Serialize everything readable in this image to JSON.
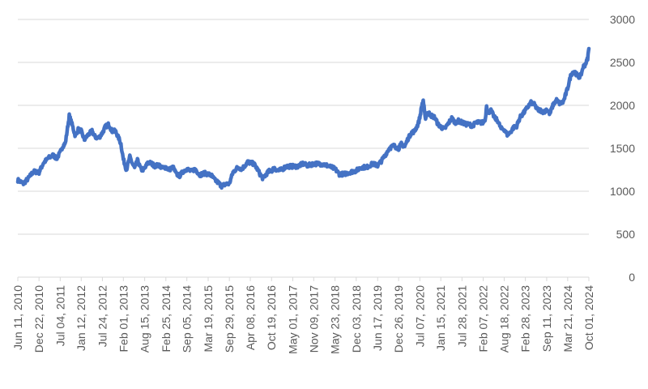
{
  "chart_data": {
    "type": "line",
    "title": "",
    "xlabel": "",
    "ylabel": "",
    "y_axis_side": "right",
    "ylim": [
      0,
      3000
    ],
    "yticks": [
      0,
      500,
      1000,
      1500,
      2000,
      2500,
      3000
    ],
    "grid": "horizontal",
    "legend": "none",
    "line_color": "#4472C4",
    "gridline_color": "#D9D9D9",
    "xticks": [
      "Jun 11, 2010",
      "Dec 22, 2010",
      "Jul 04, 2011",
      "Jan 12, 2012",
      "Jul 24, 2012",
      "Feb 01, 2013",
      "Aug 15, 2013",
      "Feb 25, 2014",
      "Sep 05, 2014",
      "Mar 19, 2015",
      "Sep 29, 2015",
      "Apr 08, 2016",
      "Oct 19, 2016",
      "May 01, 2017",
      "Nov 09, 2017",
      "May 23, 2018",
      "Dec 03, 2018",
      "Jun 17, 2019",
      "Dec 26, 2019",
      "Jul 07, 2020",
      "Jan 15, 2021",
      "Jul 28, 2021",
      "Feb 07, 2022",
      "Aug 18, 2022",
      "Feb 28, 2023",
      "Sep 11, 2023",
      "Mar 21, 2024",
      "Oct 01, 2024"
    ],
    "x": [
      "2010-06-11",
      "2010-08-01",
      "2010-09-15",
      "2010-11-01",
      "2010-12-22",
      "2011-02-01",
      "2011-03-20",
      "2011-05-01",
      "2011-06-01",
      "2011-07-04",
      "2011-07-25",
      "2011-08-20",
      "2011-09-05",
      "2011-09-25",
      "2011-10-20",
      "2011-11-20",
      "2011-12-15",
      "2012-01-12",
      "2012-02-10",
      "2012-03-10",
      "2012-04-20",
      "2012-05-20",
      "2012-06-20",
      "2012-07-24",
      "2012-08-20",
      "2012-09-20",
      "2012-10-20",
      "2012-11-20",
      "2012-12-20",
      "2013-01-10",
      "2013-02-01",
      "2013-03-01",
      "2013-04-01",
      "2013-04-25",
      "2013-05-15",
      "2013-06-10",
      "2013-06-28",
      "2013-07-15",
      "2013-08-15",
      "2013-09-15",
      "2013-10-20",
      "2013-11-20",
      "2013-12-20",
      "2014-01-20",
      "2014-02-25",
      "2014-03-25",
      "2014-05-01",
      "2014-06-01",
      "2014-07-01",
      "2014-08-01",
      "2014-09-05",
      "2014-10-15",
      "2014-11-20",
      "2015-01-01",
      "2015-02-10",
      "2015-03-19",
      "2015-04-20",
      "2015-05-20",
      "2015-06-20",
      "2015-07-20",
      "2015-08-20",
      "2015-09-29",
      "2015-11-01",
      "2015-12-15",
      "2016-01-20",
      "2016-02-20",
      "2016-03-15",
      "2016-04-08",
      "2016-05-10",
      "2016-06-10",
      "2016-07-05",
      "2016-08-01",
      "2016-09-01",
      "2016-10-01",
      "2016-10-19",
      "2016-11-15",
      "2016-12-15",
      "2017-01-20",
      "2017-03-01",
      "2017-05-01",
      "2017-06-15",
      "2017-08-01",
      "2017-09-15",
      "2017-11-09",
      "2018-01-01",
      "2018-02-15",
      "2018-04-01",
      "2018-05-23",
      "2018-07-01",
      "2018-08-15",
      "2018-10-01",
      "2018-12-03",
      "2019-01-20",
      "2019-03-10",
      "2019-05-01",
      "2019-06-17",
      "2019-07-20",
      "2019-08-25",
      "2019-10-01",
      "2019-11-10",
      "2019-12-26",
      "2020-01-20",
      "2020-02-20",
      "2020-03-20",
      "2020-04-20",
      "2020-05-20",
      "2020-06-20",
      "2020-07-07",
      "2020-07-25",
      "2020-08-07",
      "2020-08-25",
      "2020-09-20",
      "2020-10-20",
      "2020-11-20",
      "2020-12-20",
      "2021-01-15",
      "2021-02-15",
      "2021-03-20",
      "2021-04-25",
      "2021-05-25",
      "2021-06-25",
      "2021-07-28",
      "2021-09-01",
      "2021-10-01",
      "2021-11-01",
      "2021-12-01",
      "2022-01-01",
      "2022-02-07",
      "2022-02-28",
      "2022-03-10",
      "2022-03-25",
      "2022-04-15",
      "2022-05-20",
      "2022-06-20",
      "2022-07-20",
      "2022-08-18",
      "2022-09-15",
      "2022-10-10",
      "2022-11-10",
      "2022-12-10",
      "2023-01-10",
      "2023-02-05",
      "2023-02-28",
      "2023-03-20",
      "2023-04-20",
      "2023-05-20",
      "2023-06-20",
      "2023-07-20",
      "2023-08-20",
      "2023-09-11",
      "2023-10-10",
      "2023-11-10",
      "2023-12-10",
      "2024-01-10",
      "2024-02-10",
      "2024-03-01",
      "2024-03-21",
      "2024-04-20",
      "2024-05-20",
      "2024-06-10",
      "2024-07-01",
      "2024-07-20",
      "2024-08-10",
      "2024-08-25",
      "2024-09-10",
      "2024-09-20",
      "2024-10-01"
    ],
    "values": [
      1130,
      1090,
      1150,
      1230,
      1220,
      1330,
      1390,
      1420,
      1380,
      1450,
      1520,
      1560,
      1700,
      1880,
      1780,
      1640,
      1720,
      1700,
      1600,
      1650,
      1700,
      1630,
      1620,
      1680,
      1750,
      1780,
      1700,
      1700,
      1620,
      1550,
      1370,
      1250,
      1400,
      1320,
      1270,
      1360,
      1300,
      1250,
      1260,
      1340,
      1320,
      1290,
      1310,
      1270,
      1280,
      1250,
      1280,
      1200,
      1180,
      1230,
      1260,
      1230,
      1260,
      1190,
      1210,
      1200,
      1180,
      1130,
      1100,
      1060,
      1080,
      1090,
      1220,
      1280,
      1260,
      1300,
      1340,
      1330,
      1320,
      1260,
      1200,
      1150,
      1200,
      1240,
      1240,
      1270,
      1240,
      1250,
      1290,
      1290,
      1290,
      1320,
      1300,
      1320,
      1320,
      1310,
      1290,
      1260,
      1200,
      1200,
      1220,
      1240,
      1280,
      1280,
      1320,
      1300,
      1350,
      1420,
      1500,
      1530,
      1500,
      1550,
      1520,
      1610,
      1680,
      1700,
      1780,
      1860,
      2000,
      2060,
      1850,
      1920,
      1880,
      1860,
      1780,
      1750,
      1720,
      1780,
      1850,
      1800,
      1820,
      1800,
      1780,
      1780,
      1760,
      1800,
      1800,
      1800,
      1850,
      2010,
      1900,
      1950,
      1860,
      1820,
      1730,
      1720,
      1660,
      1680,
      1740,
      1760,
      1860,
      1900,
      1940,
      1980,
      2030,
      2010,
      1950,
      1940,
      1920,
      1960,
      1900,
      2010,
      2060,
      2020,
      2040,
      2120,
      2200,
      2360,
      2400,
      2360,
      2330,
      2350,
      2450,
      2470,
      2510,
      2550,
      2660
    ]
  }
}
